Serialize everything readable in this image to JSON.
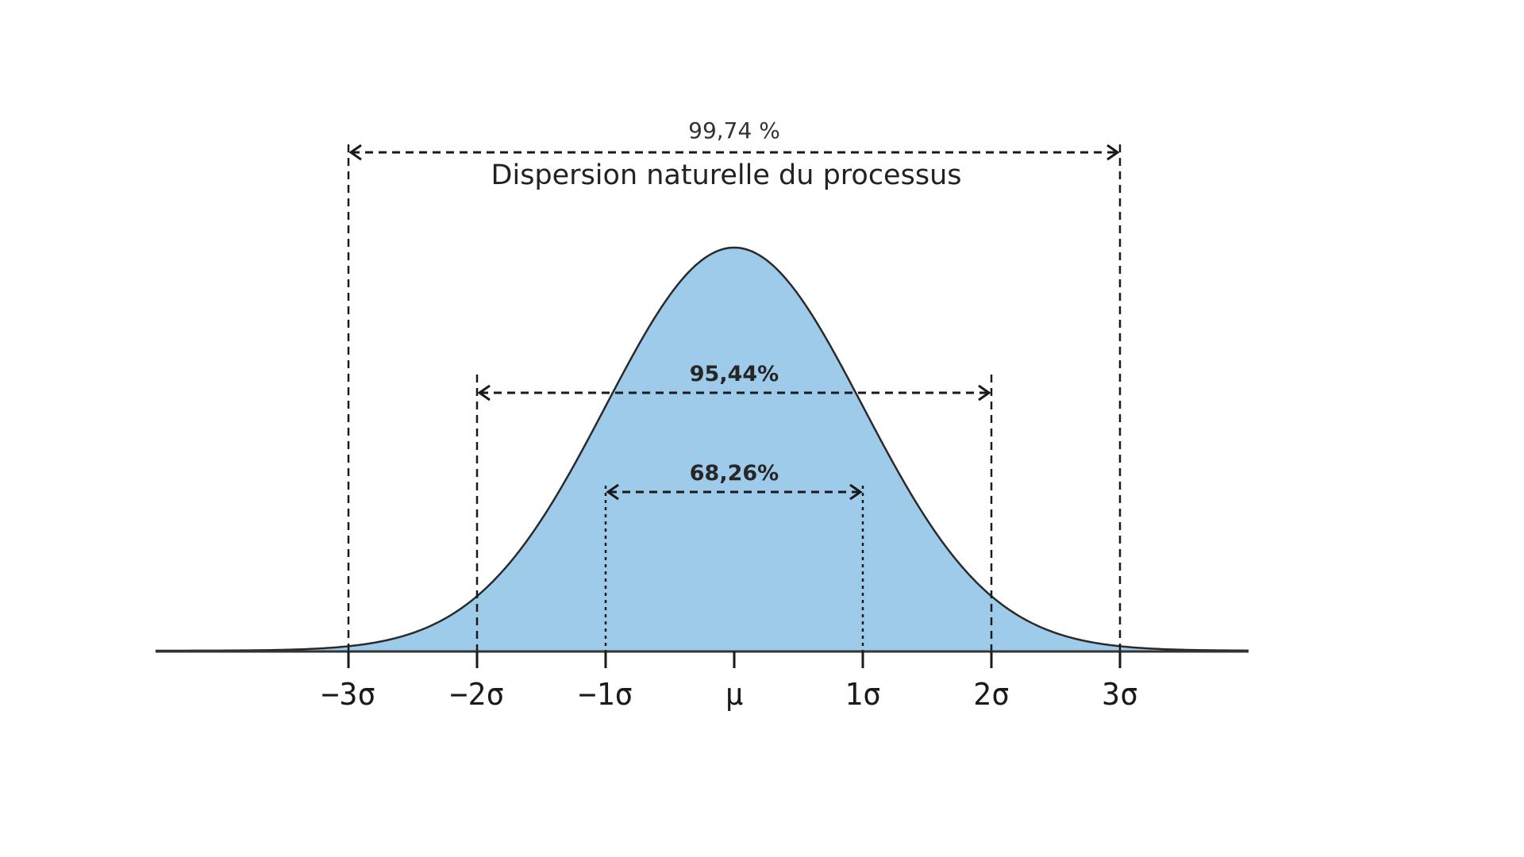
{
  "chart_data": {
    "type": "area",
    "title": "Dispersion naturelle du processus",
    "distribution": "normal",
    "mean_label": "μ",
    "x_range_sigma": [
      -4.5,
      4.0
    ],
    "ticks": [
      {
        "sigma": -3,
        "label": "−3σ"
      },
      {
        "sigma": -2,
        "label": "−2σ"
      },
      {
        "sigma": -1,
        "label": "−1σ"
      },
      {
        "sigma": 0,
        "label": "μ"
      },
      {
        "sigma": 1,
        "label": "1σ"
      },
      {
        "sigma": 2,
        "label": "2σ"
      },
      {
        "sigma": 3,
        "label": "3σ"
      }
    ],
    "ranges": [
      {
        "from_sigma": -1,
        "to_sigma": 1,
        "label": "68,26%"
      },
      {
        "from_sigma": -2,
        "to_sigma": 2,
        "label": "95,44%"
      },
      {
        "from_sigma": -3,
        "to_sigma": 3,
        "label": "99,74 %"
      }
    ],
    "colors": {
      "fill": "#9fcbea",
      "curve": "#2a2a2a",
      "axis": "#333333",
      "dashes": "#1a1a1a"
    }
  }
}
